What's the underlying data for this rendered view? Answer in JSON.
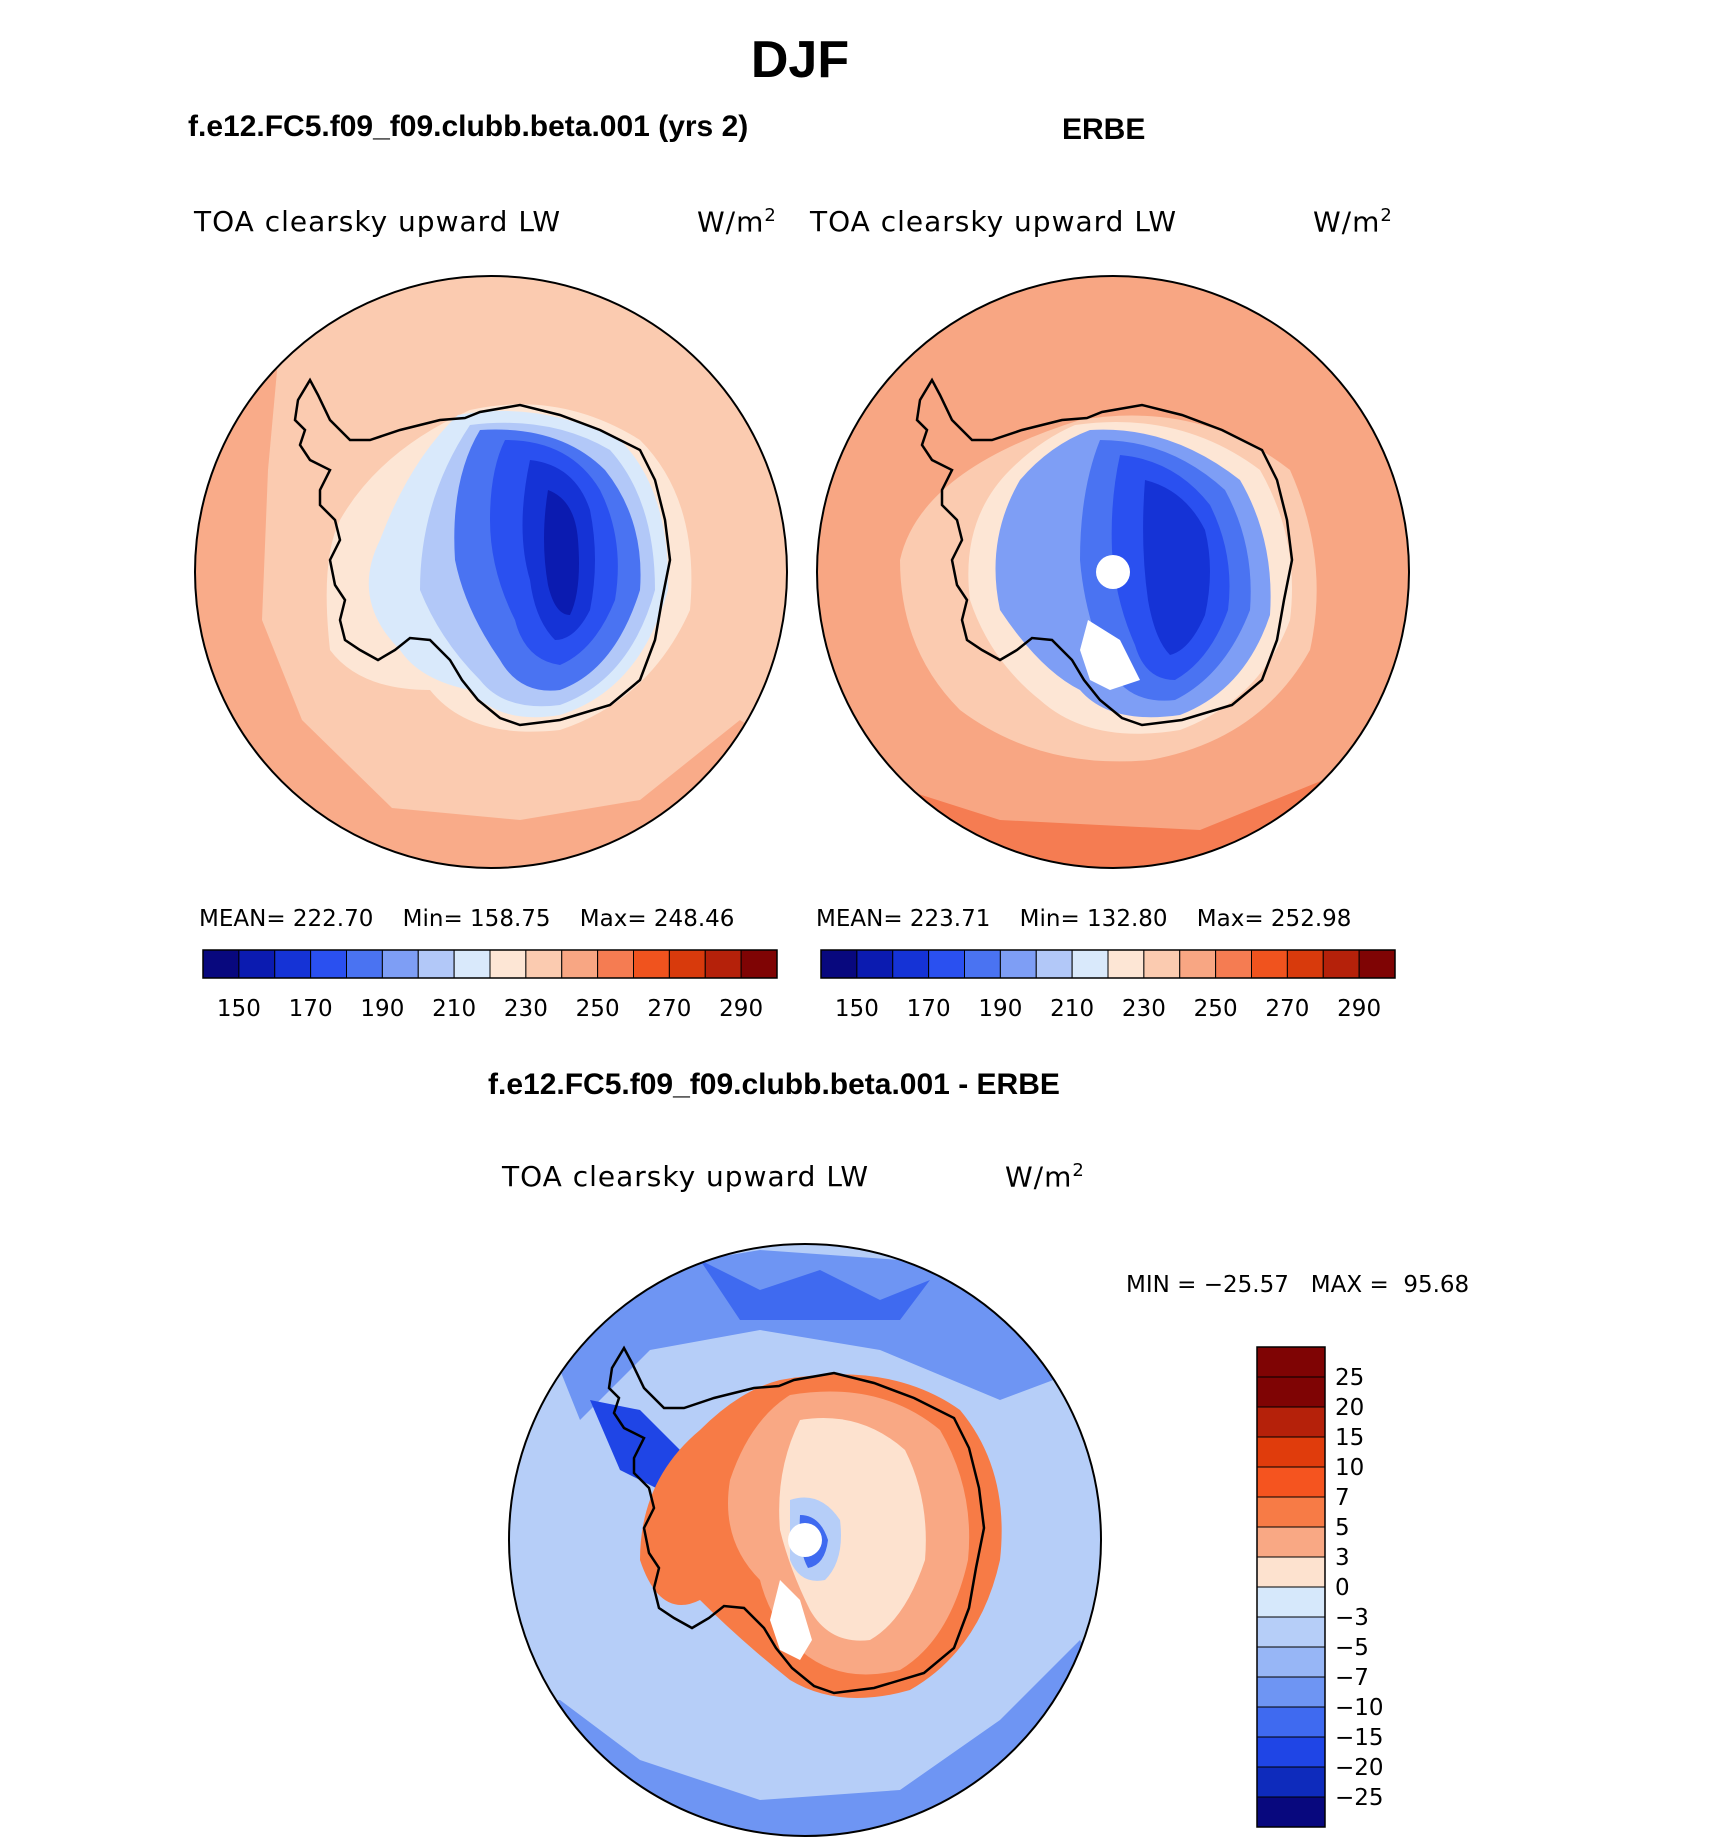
{
  "season": "DJF",
  "panels": [
    {
      "id": "model",
      "title": "f.e12.FC5.f09_f09.clubb.beta.001 (yrs 2)",
      "field": "TOA clearsky upward LW",
      "units": "W/m",
      "units_sup": "2",
      "stats": {
        "mean_label": "MEAN=",
        "mean": "222.70",
        "min_label": "Min=",
        "min": "158.75",
        "max_label": "Max=",
        "max": "248.46"
      }
    },
    {
      "id": "obs",
      "title": "ERBE",
      "field": "TOA clearsky upward LW",
      "units": "W/m",
      "units_sup": "2",
      "stats": {
        "mean_label": "MEAN=",
        "mean": "223.71",
        "min_label": "Min=",
        "min": "132.80",
        "max_label": "Max=",
        "max": "252.98"
      }
    },
    {
      "id": "diff",
      "title": "f.e12.FC5.f09_f09.clubb.beta.001 - ERBE",
      "field": "TOA clearsky upward LW",
      "units": "W/m",
      "units_sup": "2",
      "stats": {
        "min_label": "MIN =",
        "min": "−25.57",
        "max_label": "MAX =",
        "max": "95.68"
      }
    }
  ],
  "absolute_scale": {
    "colors": [
      "#08087e",
      "#0b1bb0",
      "#1533d6",
      "#2a50f0",
      "#4a73f2",
      "#7e9ef5",
      "#b2c8f8",
      "#d9e9fb",
      "#fde6d5",
      "#fbcbb0",
      "#f8a683",
      "#f57c52",
      "#f0531e",
      "#d83a0c",
      "#b5210a",
      "#7f0404"
    ],
    "tick_labels": [
      "150",
      "170",
      "190",
      "210",
      "230",
      "250",
      "270",
      "290"
    ]
  },
  "difference_scale": {
    "colors": [
      "#7f0404",
      "#b5210a",
      "#e03c0c",
      "#f5541f",
      "#f77b46",
      "#f9a884",
      "#fde2cf",
      "#d6e8fb",
      "#b6cef8",
      "#97b6f6",
      "#6e95f3",
      "#3f6af0",
      "#1f45e6",
      "#0e2bbc",
      "#08087e"
    ],
    "tick_labels": [
      "25",
      "20",
      "15",
      "10",
      "7",
      "5",
      "3",
      "0",
      "−3",
      "−5",
      "−7",
      "−10",
      "−15",
      "−20",
      "−25"
    ]
  }
}
